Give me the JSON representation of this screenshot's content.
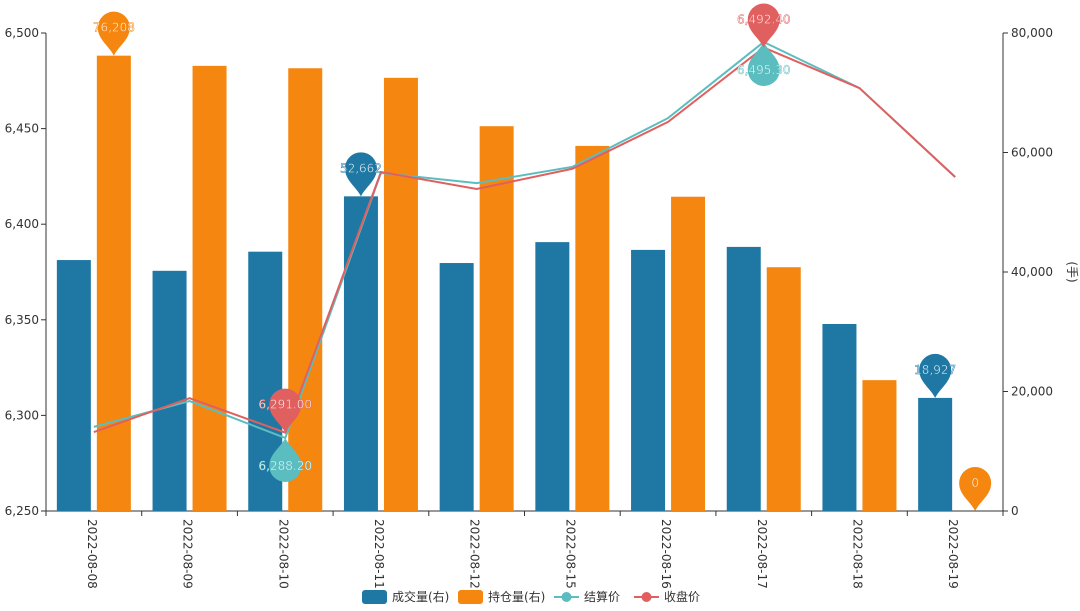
{
  "chart_data": {
    "type": "bar",
    "categories": [
      "2022-08-08",
      "2022-08-09",
      "2022-08-10",
      "2022-08-11",
      "2022-08-12",
      "2022-08-15",
      "2022-08-16",
      "2022-08-17",
      "2022-08-18",
      "2022-08-19"
    ],
    "y_left": {
      "min": 6250,
      "max": 6500,
      "ticks": [
        "6,250",
        "6,300",
        "6,350",
        "6,400",
        "6,450",
        "6,500"
      ]
    },
    "y_right": {
      "min": 0,
      "max": 80000,
      "label": "(手)",
      "ticks": [
        "0",
        "20,000",
        "40,000",
        "60,000",
        "80,000"
      ]
    },
    "series": [
      {
        "name": "成交量(右)",
        "type": "bar",
        "axis": "right",
        "color": "#1f78a4",
        "values": [
          42000,
          40200,
          43400,
          52662,
          41500,
          45000,
          43700,
          44200,
          31300,
          18927
        ],
        "marks": [
          {
            "index": 3,
            "label": "52,662"
          },
          {
            "index": 9,
            "label": "18,927"
          }
        ]
      },
      {
        "name": "持仓量(右)",
        "type": "bar",
        "axis": "right",
        "color": "#f5860f",
        "values": [
          76208,
          74500,
          74100,
          72500,
          64400,
          61100,
          52600,
          40800,
          21900,
          0
        ],
        "marks": [
          {
            "index": 0,
            "label": "76,208"
          },
          {
            "index": 9,
            "label": "0"
          }
        ]
      },
      {
        "name": "结算价",
        "type": "line",
        "axis": "left",
        "color": "#5bbdbf",
        "values": [
          6294,
          6307.5,
          6288.2,
          6426.8,
          6421.5,
          6430,
          6455.5,
          6495.3,
          6471.2,
          6424.7
        ],
        "marks": [
          {
            "index": 2,
            "label": "6,288.20"
          },
          {
            "index": 7,
            "label": "6,495.30"
          }
        ]
      },
      {
        "name": "收盘价",
        "type": "line",
        "axis": "left",
        "color": "#e06060",
        "values": [
          6291.3,
          6309,
          6291.0,
          6427.3,
          6418.4,
          6429,
          6453.5,
          6492.4,
          6471.2,
          6424.7
        ],
        "marks": [
          {
            "index": 2,
            "label": "6,291.00"
          },
          {
            "index": 7,
            "label": "6,492.40"
          }
        ]
      }
    ],
    "grid": false,
    "legend_position": "bottom"
  }
}
